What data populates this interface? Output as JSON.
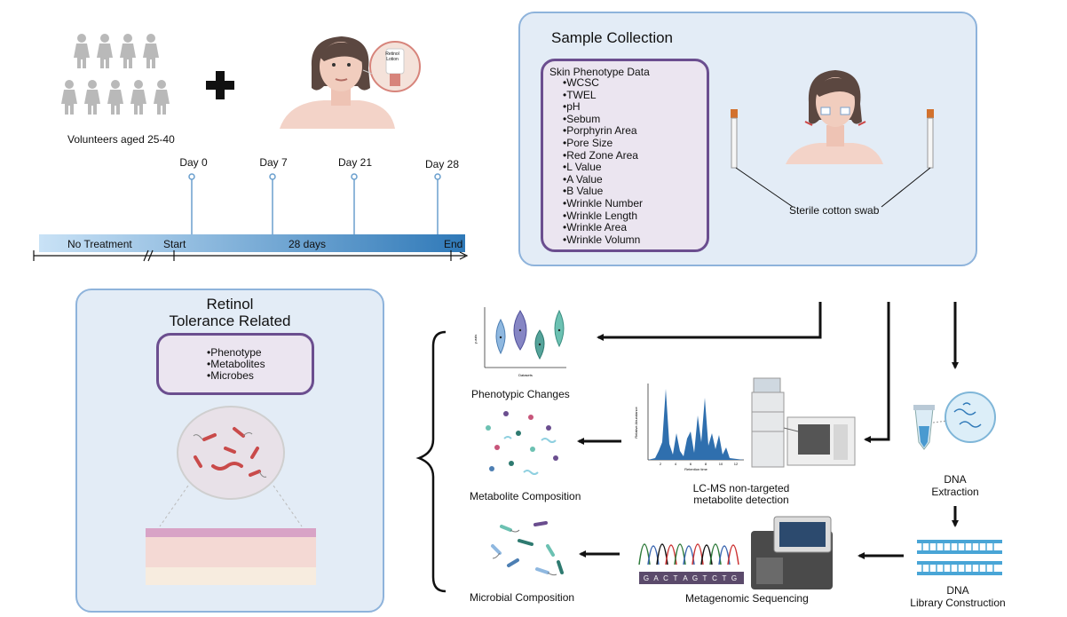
{
  "study": {
    "volunteers_label": "Volunteers aged 25-40",
    "lotion_label": "Retinol Lotion"
  },
  "timeline": {
    "days": [
      "Day 0",
      "Day 7",
      "Day 21",
      "Day 28"
    ],
    "no_treatment": "No Treatment",
    "start": "Start",
    "duration": "28 days",
    "end": "End"
  },
  "sample_collection": {
    "title": "Sample Collection",
    "phenotype_header": "Skin Phenotype Data",
    "phenotype_items": [
      "WCSC",
      "TWEL",
      "pH",
      "Sebum",
      "Porphyrin Area",
      "Pore Size",
      "Red Zone Area",
      "L Value",
      "A Value",
      "B Value",
      "Wrinkle Number",
      "Wrinkle Length",
      "Wrinkle Area",
      "Wrinkle Volumn"
    ],
    "swab_label": "Sterile cotton swab"
  },
  "retinol": {
    "title_line1": "Retinol",
    "title_line2": "Tolerance Related",
    "items": [
      "Phenotype",
      "Metabolites",
      "Microbes"
    ]
  },
  "outputs": {
    "phenotypic": "Phenotypic Changes",
    "metabolite": "Metabolite Composition",
    "microbial": "Microbial Composition"
  },
  "methods": {
    "lcms_line1": "LC-MS non-targeted",
    "lcms_line2": "metabolite detection",
    "metagenomic": "Metagenomic Sequencing",
    "dna_extraction_line1": "DNA",
    "dna_extraction_line2": "Extraction",
    "dna_library_line1": "DNA",
    "dna_library_line2": "Library Construction"
  },
  "mini_charts": {
    "violin_ylabel": "y-axis",
    "violin_xlabel": "Datasets",
    "chrom_ylabel": "Relative Abundance",
    "chrom_xlabel": "Retention time",
    "chrom_ticks": [
      "2",
      "4",
      "6",
      "8",
      "10",
      "12"
    ],
    "dna_bases": [
      "G",
      "A",
      "C",
      "T",
      "A",
      "G",
      "T",
      "C",
      "T",
      "G"
    ]
  }
}
